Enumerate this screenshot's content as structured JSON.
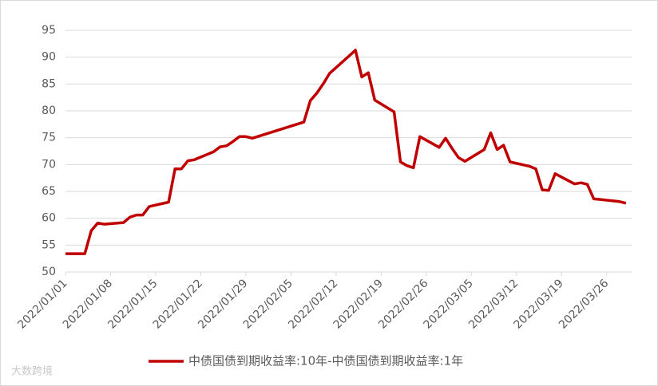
{
  "chart_data": {
    "type": "line",
    "x": [
      "2022/01/01",
      "2022/01/04",
      "2022/01/05",
      "2022/01/06",
      "2022/01/07",
      "2022/01/10",
      "2022/01/11",
      "2022/01/12",
      "2022/01/13",
      "2022/01/14",
      "2022/01/17",
      "2022/01/18",
      "2022/01/19",
      "2022/01/20",
      "2022/01/21",
      "2022/01/24",
      "2022/01/25",
      "2022/01/26",
      "2022/01/27",
      "2022/01/28",
      "2022/01/29",
      "2022/01/30",
      "2022/02/07",
      "2022/02/08",
      "2022/02/09",
      "2022/02/10",
      "2022/02/11",
      "2022/02/14",
      "2022/02/15",
      "2022/02/16",
      "2022/02/17",
      "2022/02/18",
      "2022/02/21",
      "2022/02/22",
      "2022/02/23",
      "2022/02/24",
      "2022/02/25",
      "2022/02/28",
      "2022/03/01",
      "2022/03/02",
      "2022/03/03",
      "2022/03/04",
      "2022/03/07",
      "2022/03/08",
      "2022/03/09",
      "2022/03/10",
      "2022/03/11",
      "2022/03/14",
      "2022/03/15",
      "2022/03/16",
      "2022/03/17",
      "2022/03/18",
      "2022/03/21",
      "2022/03/22",
      "2022/03/23",
      "2022/03/24",
      "2022/03/25",
      "2022/03/28",
      "2022/03/29"
    ],
    "series": [
      {
        "name": "中债国债到期收益率:10年-中债国债到期收益率:1年",
        "color": "#c00000",
        "values": [
          53.4,
          53.4,
          57.7,
          59.1,
          58.9,
          59.2,
          60.2,
          60.6,
          60.6,
          62.2,
          63.0,
          69.2,
          69.2,
          70.7,
          70.9,
          72.4,
          73.3,
          73.5,
          74.3,
          75.2,
          75.2,
          74.9,
          77.9,
          81.9,
          83.3,
          85.0,
          87.0,
          90.2,
          91.3,
          86.3,
          87.1,
          82.0,
          79.8,
          70.5,
          69.8,
          69.4,
          75.2,
          73.2,
          74.9,
          73.0,
          71.3,
          70.6,
          72.8,
          75.9,
          72.8,
          73.6,
          70.5,
          69.7,
          69.2,
          65.3,
          65.2,
          68.3,
          66.4,
          66.6,
          66.3,
          63.6,
          63.5,
          63.1,
          62.8
        ]
      }
    ],
    "xlim": [
      "2022/01/01",
      "2022/03/30"
    ],
    "xticks": [
      "2022/01/01",
      "2022/01/08",
      "2022/01/15",
      "2022/01/22",
      "2022/01/29",
      "2022/02/05",
      "2022/02/12",
      "2022/02/19",
      "2022/02/26",
      "2022/03/05",
      "2022/03/12",
      "2022/03/19",
      "2022/03/26"
    ],
    "ylim": [
      50,
      95
    ],
    "yticks": [
      50,
      55,
      60,
      65,
      70,
      75,
      80,
      85,
      90,
      95
    ],
    "grid": true,
    "legend": "bottom",
    "watermark": "大数跨境"
  }
}
